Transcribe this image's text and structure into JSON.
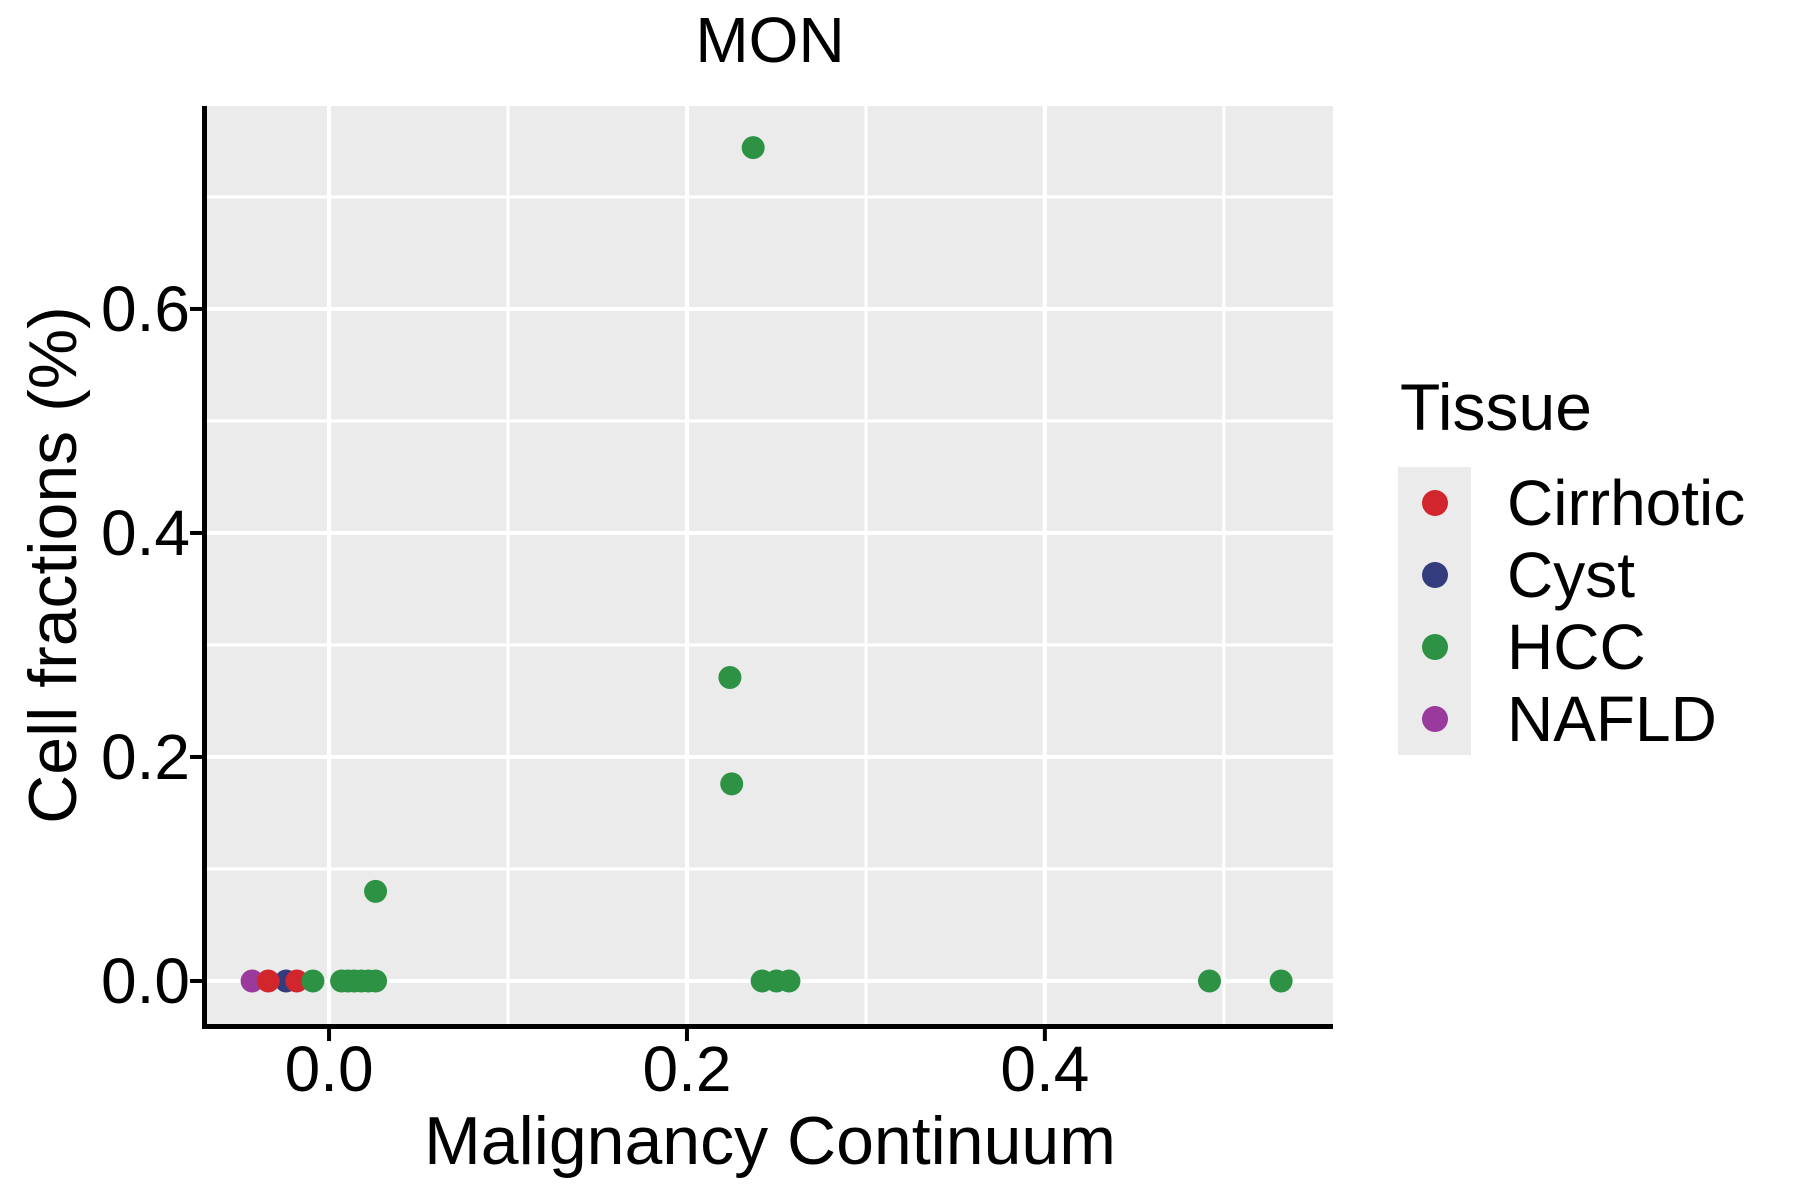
{
  "title": "MON",
  "chart_data": {
    "type": "scatter",
    "title": "MON",
    "xlabel": "Malignancy Continuum",
    "ylabel": "Cell fractions (%)",
    "xlim": [
      -0.0682,
      0.561
    ],
    "ylim": [
      -0.0384,
      0.7812
    ],
    "x_ticks": {
      "values": [
        0.0,
        0.2,
        0.4
      ],
      "labels": [
        "0.0",
        "0.2",
        "0.4"
      ]
    },
    "y_ticks": {
      "values": [
        0.0,
        0.2,
        0.4,
        0.6
      ],
      "labels": [
        "0.0",
        "0.2",
        "0.4",
        "0.6"
      ]
    },
    "x_minor_ticks": [
      0.1,
      0.3,
      0.5
    ],
    "y_minor_ticks": [
      0.1,
      0.3,
      0.5,
      0.7
    ],
    "grid": true,
    "panel_background": "#EBEBEB",
    "grid_color": "#FFFFFF",
    "axis_color": "#000000",
    "legend_title": "Tissue",
    "legend_position": "right",
    "legend": {
      "entries": [
        {
          "label": "Cirrhotic",
          "color": "#D2262D"
        },
        {
          "label": "Cyst",
          "color": "#333D7E"
        },
        {
          "label": "HCC",
          "color": "#2E9245"
        },
        {
          "label": "NAFLD",
          "color": "#9B3A9D"
        }
      ]
    },
    "series": [
      {
        "name": "NAFLD",
        "color": "#9B3A9D",
        "points": [
          [
            -0.043,
            0.0
          ]
        ]
      },
      {
        "name": "Cyst",
        "color": "#333D7E",
        "points": [
          [
            -0.024,
            0.0
          ]
        ]
      },
      {
        "name": "Cirrhotic",
        "color": "#D2262D",
        "points": [
          [
            -0.034,
            0.0
          ],
          [
            -0.018,
            0.0
          ]
        ]
      },
      {
        "name": "HCC",
        "color": "#2E9245",
        "points": [
          [
            -0.009,
            0.0
          ],
          [
            0.007,
            0.0
          ],
          [
            0.0105,
            0.0
          ],
          [
            0.014,
            0.0
          ],
          [
            0.018,
            0.0
          ],
          [
            0.022,
            0.0
          ],
          [
            0.026,
            0.0
          ],
          [
            0.026,
            0.08
          ],
          [
            0.224,
            0.271
          ],
          [
            0.225,
            0.176
          ],
          [
            0.237,
            0.744
          ],
          [
            0.242,
            0.0
          ],
          [
            0.25,
            0.0
          ],
          [
            0.257,
            0.0
          ],
          [
            0.492,
            0.0
          ],
          [
            0.532,
            0.0
          ]
        ]
      }
    ]
  }
}
